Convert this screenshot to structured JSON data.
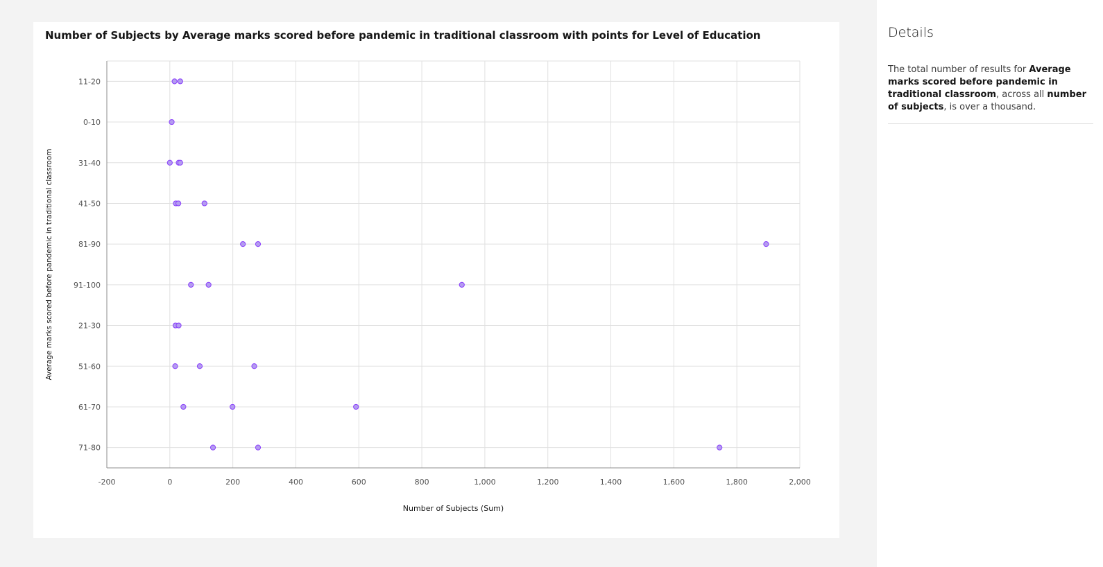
{
  "chart_title": "Number of Subjects by Average marks scored before pandemic in traditional classroom with points for Level of Education",
  "details": {
    "title": "Details",
    "text_1": "The total number of results for ",
    "bold_1": "Average marks scored before pandemic in traditional classroom",
    "text_2": ", across all ",
    "bold_2": "number of subjects",
    "text_3": ", is over a thousand."
  },
  "colors": {
    "point_fill": "#b49cf0",
    "point_stroke": "#8a3ffc",
    "grid": "#e0e0e0",
    "axis": "#8d8d8d"
  },
  "chart_data": {
    "type": "scatter",
    "xlabel": "Number of Subjects (Sum)",
    "ylabel": "Average marks scored before pandemic in traditional classroom",
    "xlim": [
      -200,
      2000
    ],
    "x_ticks": [
      "-200",
      "0",
      "200",
      "400",
      "600",
      "800",
      "1,000",
      "1,200",
      "1,400",
      "1,600",
      "1,800",
      "2,000"
    ],
    "x_tick_values": [
      -200,
      0,
      200,
      400,
      600,
      800,
      1000,
      1200,
      1400,
      1600,
      1800,
      2000
    ],
    "categories": [
      "11-20",
      "0-10",
      "31-40",
      "41-50",
      "81-90",
      "91-100",
      "21-30",
      "51-60",
      "61-70",
      "71-80"
    ],
    "grid": true,
    "points": [
      {
        "y": "11-20",
        "x": 15
      },
      {
        "y": "11-20",
        "x": 33
      },
      {
        "y": "0-10",
        "x": 6
      },
      {
        "y": "31-40",
        "x": 0
      },
      {
        "y": "31-40",
        "x": 28
      },
      {
        "y": "31-40",
        "x": 33
      },
      {
        "y": "41-50",
        "x": 19
      },
      {
        "y": "41-50",
        "x": 27
      },
      {
        "y": "41-50",
        "x": 110
      },
      {
        "y": "81-90",
        "x": 232
      },
      {
        "y": "81-90",
        "x": 280
      },
      {
        "y": "81-90",
        "x": 1893
      },
      {
        "y": "91-100",
        "x": 67
      },
      {
        "y": "91-100",
        "x": 123
      },
      {
        "y": "91-100",
        "x": 927
      },
      {
        "y": "21-30",
        "x": 18
      },
      {
        "y": "21-30",
        "x": 28
      },
      {
        "y": "51-60",
        "x": 17
      },
      {
        "y": "51-60",
        "x": 95
      },
      {
        "y": "51-60",
        "x": 268
      },
      {
        "y": "61-70",
        "x": 43
      },
      {
        "y": "61-70",
        "x": 199
      },
      {
        "y": "61-70",
        "x": 591
      },
      {
        "y": "71-80",
        "x": 137
      },
      {
        "y": "71-80",
        "x": 280
      },
      {
        "y": "71-80",
        "x": 1745
      }
    ]
  }
}
